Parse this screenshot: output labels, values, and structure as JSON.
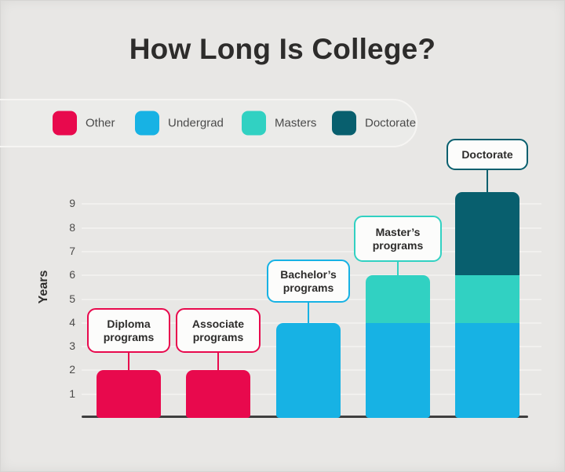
{
  "title": "How Long Is College?",
  "colors": {
    "background": "#e8e7e5",
    "text": "#2d2c2b",
    "axis": "#3e3e3e",
    "other": "#e8094d",
    "undergrad": "#17b2e4",
    "masters": "#31d1c2",
    "doctorate": "#085f6e"
  },
  "legend": {
    "items": [
      {
        "label": "Other",
        "color": "#e8094d"
      },
      {
        "label": "Undergrad",
        "color": "#17b2e4"
      },
      {
        "label": "Masters",
        "color": "#31d1c2"
      },
      {
        "label": "Doctorate",
        "color": "#085f6e"
      }
    ]
  },
  "chart_data": {
    "type": "bar",
    "stacked": true,
    "title": "How Long Is College?",
    "xlabel": "",
    "ylabel": "Years",
    "ylim": [
      0,
      10
    ],
    "yticks": [
      1,
      2,
      3,
      4,
      5,
      6,
      7,
      8,
      9
    ],
    "grid": true,
    "legend_position": "top-left",
    "categories": [
      "Diploma programs",
      "Associate programs",
      "Bachelor’s programs",
      "Master’s programs",
      "Doctorate"
    ],
    "series": [
      {
        "name": "Other",
        "color": "#e8094d",
        "values": [
          2,
          2,
          0,
          0,
          0
        ]
      },
      {
        "name": "Undergrad",
        "color": "#17b2e4",
        "values": [
          0,
          0,
          4,
          4,
          4
        ]
      },
      {
        "name": "Masters",
        "color": "#31d1c2",
        "values": [
          0,
          0,
          0,
          2,
          2
        ]
      },
      {
        "name": "Doctorate",
        "color": "#085f6e",
        "values": [
          0,
          0,
          0,
          0,
          3.5
        ]
      }
    ],
    "totals_years": [
      2,
      2,
      4,
      6,
      9.5
    ]
  }
}
